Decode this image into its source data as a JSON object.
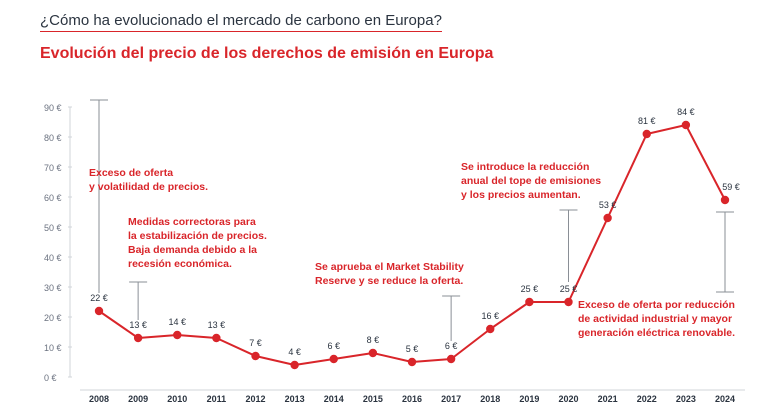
{
  "header": {
    "kicker": "¿Cómo ha evolucionado el mercado de carbono en Europa?",
    "title": "Evolución del precio de los derechos de emisión en Europa"
  },
  "colors": {
    "accent": "#d9252a",
    "text": "#2b3440",
    "grid": "#d0d4da",
    "axis": "#6b7280"
  },
  "chart_data": {
    "type": "line",
    "categories": [
      "2008",
      "2009",
      "2010",
      "2011",
      "2012",
      "2013",
      "2014",
      "2015",
      "2016",
      "2017",
      "2018",
      "2019",
      "2020",
      "2021",
      "2022",
      "2023",
      "2024"
    ],
    "values": [
      22,
      13,
      14,
      13,
      7,
      4,
      6,
      8,
      5,
      6,
      16,
      25,
      25,
      53,
      81,
      84,
      59
    ],
    "point_labels": [
      "22 €",
      "13 €",
      "14 €",
      "13 €",
      "7 €",
      "4 €",
      "6 €",
      "8 €",
      "5 €",
      "6 €",
      "16 €",
      "25 €",
      "25 €",
      "53 €",
      "81 €",
      "84 €",
      "59 €"
    ],
    "y_ticks": [
      0,
      10,
      20,
      30,
      40,
      50,
      60,
      70,
      80,
      90
    ],
    "y_tick_labels": [
      "0 €",
      "10 €",
      "20 €",
      "30 €",
      "40 €",
      "50 €",
      "60 €",
      "70 €",
      "80 €",
      "90 €"
    ],
    "ylim": [
      0,
      90
    ],
    "grid": false,
    "annotations": [
      {
        "year": "2008",
        "lines": [
          "Exceso de oferta",
          "y volatilidad de precios."
        ]
      },
      {
        "year": "2009",
        "lines": [
          "Medidas correctoras para",
          "la estabilización de precios.",
          "Baja demanda debido a la",
          "recesión económica."
        ]
      },
      {
        "year": "2017",
        "lines": [
          "Se aprueba el Market Stability",
          "Reserve y se reduce la oferta."
        ]
      },
      {
        "year": "2020",
        "lines": [
          "Se introduce la reducción",
          "anual del tope de emisiones",
          "y los precios aumentan."
        ]
      },
      {
        "year": "2024",
        "lines": [
          "Exceso de oferta por reducción",
          "de actividad industrial y mayor",
          "generación eléctrica renovable."
        ]
      }
    ]
  }
}
